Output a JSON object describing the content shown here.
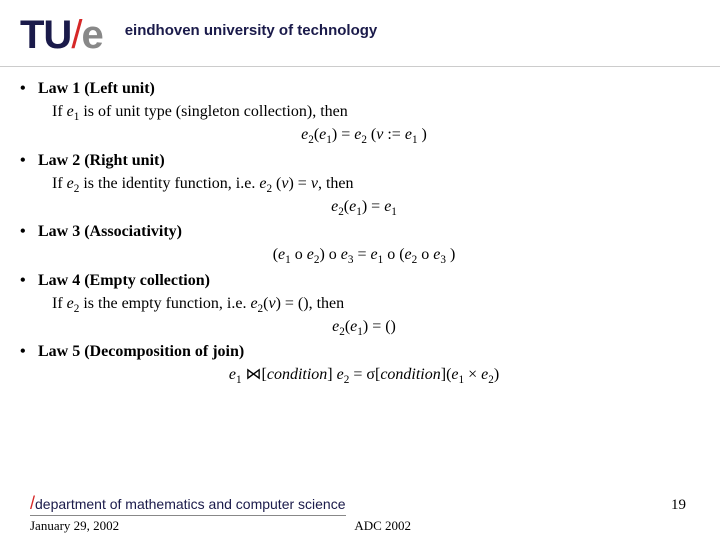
{
  "header": {
    "logo_tu": "TU",
    "logo_slash": "/",
    "logo_e": "e",
    "university": "eindhoven university of technology"
  },
  "laws": [
    {
      "title": "Law 1 (Left unit)",
      "premise_a": "If ",
      "premise_b": " is of unit type (singleton collection), then",
      "equation_parts": [
        "e",
        "2",
        "(",
        "e",
        "1",
        ") = ",
        "e",
        "2",
        " (",
        "v",
        " := ",
        "e",
        "1",
        " )"
      ]
    },
    {
      "title": "Law 2 (Right unit)",
      "premise_a": "If ",
      "premise_b": " is the identity function, i.e. ",
      "premise_c": ", then",
      "equation_parts": [
        "e",
        "2",
        "(",
        "e",
        "1",
        ") = ",
        "e",
        "1"
      ]
    },
    {
      "title": "Law 3 (Associativity)",
      "equation_parts": [
        "(",
        "e",
        "1",
        " o ",
        "e",
        "2",
        ") o ",
        "e",
        "3",
        " = ",
        "e",
        "1",
        " o (",
        "e",
        "2",
        " o ",
        "e",
        "3",
        " )"
      ]
    },
    {
      "title": "Law 4 (Empty collection)",
      "premise_a": "If ",
      "premise_b": " is the empty function, i.e. ",
      "premise_c": ") = (), then",
      "equation_parts": [
        "e",
        "2",
        "(",
        "e",
        "1",
        ") = ()"
      ]
    },
    {
      "title": "Law 5 (Decomposition of join)",
      "equation_parts": [
        "e",
        "1",
        " ⋈[",
        "condition",
        "] ",
        "e",
        "2",
        " = σ[",
        "condition",
        "](",
        "e",
        "1",
        " × ",
        "e",
        "2",
        ")"
      ]
    }
  ],
  "footer": {
    "dept_slash": "/",
    "dept": "department of mathematics and computer science",
    "date": "January 29, 2002",
    "venue": "ADC 2002",
    "page": "19"
  }
}
